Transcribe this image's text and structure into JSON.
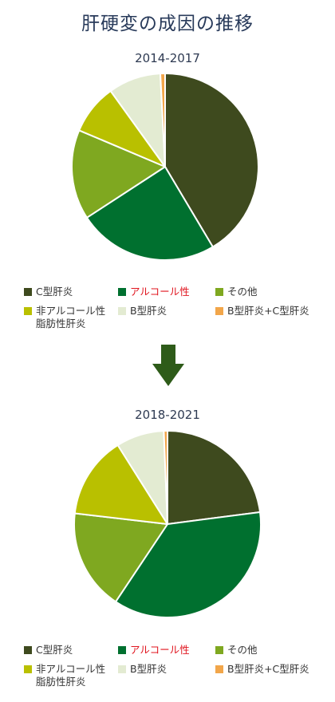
{
  "header": {
    "title": "肝硬変の成因の推移"
  },
  "colors": {
    "hcv": "#3e4a1e",
    "alcohol": "#00702f",
    "other": "#7fa820",
    "nash": "#b9c000",
    "hbv": "#e3ebd2",
    "hbv_hcv": "#f2a64a",
    "arrow": "#2e5b19",
    "alcohol_label": "#e0141e"
  },
  "chart_data": [
    {
      "type": "pie",
      "title": "2014-2017",
      "labels": [
        "C型肝炎",
        "アルコール性",
        "その他",
        "非アルコール性\n脂肪性肝炎",
        "B型肝炎",
        "B型肝炎+C型肝炎"
      ],
      "values": [
        40.5,
        23.8,
        15.2,
        8.5,
        8.9,
        0.8
      ],
      "legend_position": "bottom"
    },
    {
      "type": "pie",
      "title": "2018-2021",
      "labels": [
        "C型肝炎",
        "アルコール性",
        "その他",
        "非アルコール性\n脂肪性肝炎",
        "B型肝炎",
        "B型肝炎+C型肝炎"
      ],
      "values": [
        21.8,
        34.6,
        16.6,
        13.5,
        7.9,
        0.6
      ],
      "legend_position": "bottom"
    }
  ]
}
